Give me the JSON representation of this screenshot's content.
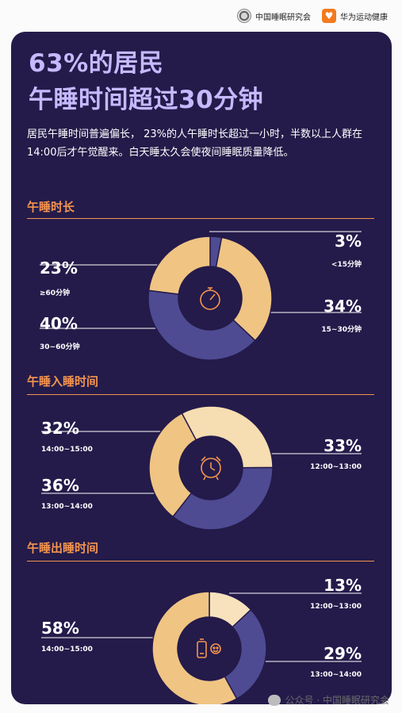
{
  "header": {
    "org1": "中国睡眠研究会",
    "org2": "华为运动健康"
  },
  "headline": {
    "line1": "63%的居民",
    "line2": "午睡时间超过30分钟"
  },
  "intro": "居民午睡时间普遍偏长， 23%的人午睡时长超过一小时，半数以上人群在14:00后才午觉醒来。白天睡太久会使夜间睡眠质量降低。",
  "colors": {
    "background": "#241b4a",
    "accent": "#f4944f",
    "headline": "#c6b9ff",
    "gold": "#f0c483",
    "purple": "#4e4b93",
    "cream": "#f6ddb2",
    "light_gold": "#f7e2bd"
  },
  "watermark": "公众号 · 中国睡眠研究会",
  "chart_data": [
    {
      "type": "pie",
      "title": "午睡时长",
      "icon": "stopwatch-icon",
      "slices": [
        {
          "label": "<15分钟",
          "value": 3,
          "display": "3%",
          "color": "#4e4b93"
        },
        {
          "label": "15~30分钟",
          "value": 34,
          "display": "34%",
          "color": "#f0c483"
        },
        {
          "label": "30~60分钟",
          "value": 40,
          "display": "40%",
          "color": "#4e4b93"
        },
        {
          "label": "≥60分钟",
          "value": 23,
          "display": "23%",
          "color": "#f0c483"
        }
      ]
    },
    {
      "type": "pie",
      "title": "午睡入睡时间",
      "icon": "alarm-clock-icon",
      "slices": [
        {
          "label": "12:00~13:00",
          "value": 33,
          "display": "33%",
          "color": "#f6ddb2"
        },
        {
          "label": "13:00~14:00",
          "value": 36,
          "display": "36%",
          "color": "#4e4b93"
        },
        {
          "label": "14:00~15:00",
          "value": 32,
          "display": "32%",
          "color": "#f0c483"
        }
      ]
    },
    {
      "type": "pie",
      "title": "午睡出睡时间",
      "icon": "battery-icon",
      "slices": [
        {
          "label": "12:00~13:00",
          "value": 13,
          "display": "13%",
          "color": "#f7e2bd"
        },
        {
          "label": "13:00~14:00",
          "value": 29,
          "display": "29%",
          "color": "#4e4b93"
        },
        {
          "label": "14:00~15:00",
          "value": 58,
          "display": "58%",
          "color": "#f0c483"
        }
      ]
    }
  ]
}
